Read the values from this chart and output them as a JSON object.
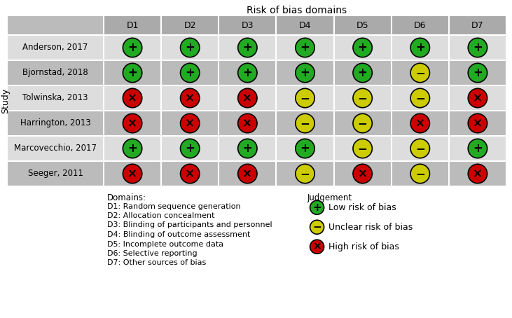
{
  "title": "Risk of bias domains",
  "ylabel": "Study",
  "columns": [
    "D1",
    "D2",
    "D3",
    "D4",
    "D5",
    "D6",
    "D7"
  ],
  "studies": [
    "Anderson, 2017",
    "Bjornstad, 2018",
    "Tolwinska, 2013",
    "Harrington, 2013",
    "Marcovecchio, 2017",
    "Seeger, 2011"
  ],
  "judgements": [
    [
      "+",
      "+",
      "+",
      "+",
      "+",
      "+",
      "+"
    ],
    [
      "+",
      "+",
      "+",
      "+",
      "+",
      "-",
      "+"
    ],
    [
      "x",
      "x",
      "x",
      "-",
      "-",
      "-",
      "x"
    ],
    [
      "x",
      "x",
      "x",
      "-",
      "-",
      "x",
      "x"
    ],
    [
      "+",
      "+",
      "+",
      "+",
      "-",
      "-",
      "+"
    ],
    [
      "x",
      "x",
      "x",
      "-",
      "x",
      "-",
      "x"
    ]
  ],
  "colors": {
    "+": "#22aa22",
    "-": "#cccc00",
    "x": "#cc0000"
  },
  "domain_descriptions": [
    "D1: Random sequence generation",
    "D2: Allocation concealment",
    "D3: Blinding of participants and personnel",
    "D4: Blinding of outcome assessment",
    "D5: Incomplete outcome data",
    "D6: Selective reporting",
    "D7: Other sources of bias"
  ],
  "header_bg": "#aaaaaa",
  "row_bg_light": "#dddddd",
  "row_bg_dark": "#bbbbbb",
  "study_col_bg": "#bbbbbb",
  "grid_color": "#ffffff",
  "title_fontsize": 10,
  "axis_label_fontsize": 9,
  "cell_fontsize": 9,
  "symbol_fontsize": 12,
  "legend_fontsize": 9,
  "domain_fontsize": 8,
  "study_fontsize": 8.5
}
